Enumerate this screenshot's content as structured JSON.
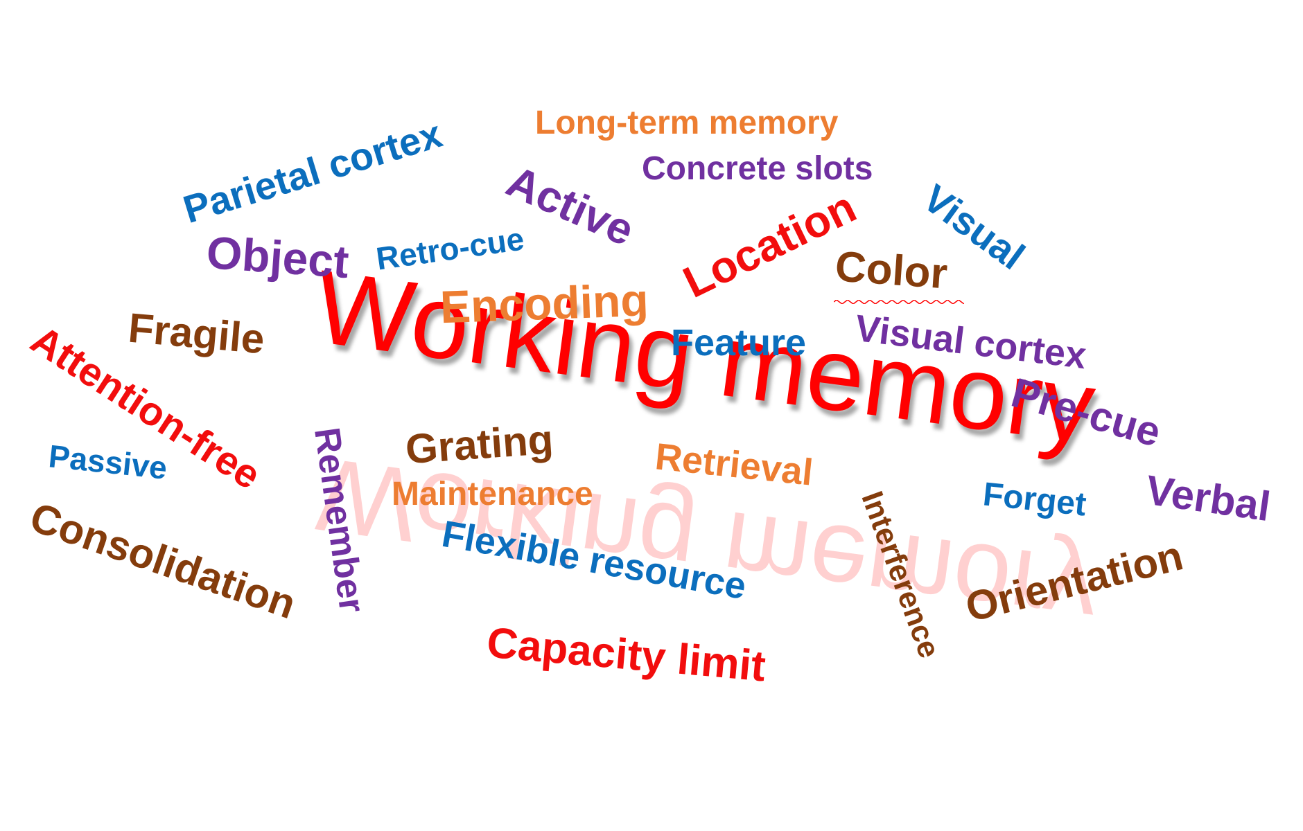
{
  "title": "Working memory",
  "words": {
    "parietal_cortex": "Parietal cortex",
    "long_term_memory": "Long-term memory",
    "concrete_slots": "Concrete slots",
    "active": "Active",
    "visual": "Visual",
    "object": "Object",
    "retro_cue": "Retro-cue",
    "location": "Location",
    "color": "Color",
    "encoding": "Encoding",
    "attention_free": "Attention-free",
    "fragile": "Fragile",
    "feature": "Feature",
    "visual_cortex": "Visual cortex",
    "pre_cue": "Pre-cue",
    "remember": "Remember",
    "grating": "Grating",
    "passive": "Passive",
    "retrieval": "Retrieval",
    "maintenance": "Maintenance",
    "interference": "Interference",
    "forget": "Forget",
    "verbal": "Verbal",
    "consolidation": "Consolidation",
    "flexible_resource": "Flexible resource",
    "orientation": "Orientation",
    "capacity_limit": "Capacity limit"
  },
  "colors": {
    "red": "#f20d0d",
    "blue": "#0b6ebd",
    "purple": "#7030a0",
    "orange": "#ed7d31",
    "brown": "#843c0c"
  }
}
